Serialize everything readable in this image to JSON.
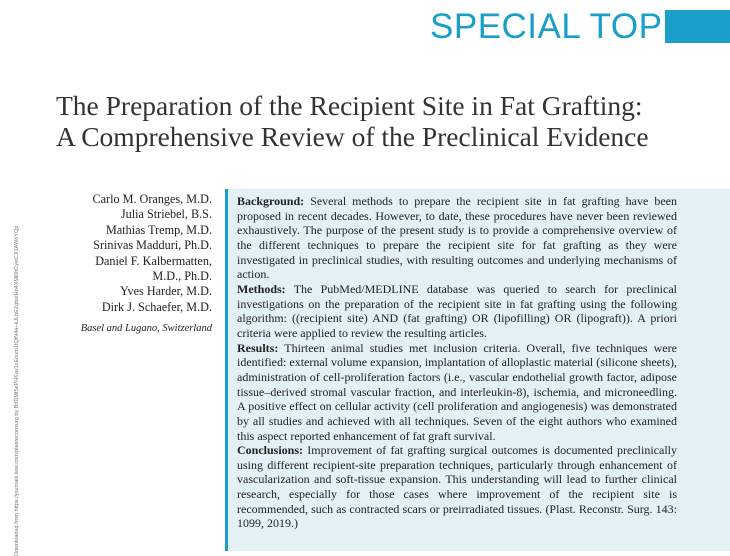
{
  "banner": {
    "label": "SPECIAL TOPIC",
    "color": "#1aa0c8"
  },
  "title": "The Preparation of the Recipient Site in Fat Grafting: A Comprehensive Review of the Preclinical Evidence",
  "authors": [
    "Carlo M. Oranges, M.D.",
    "Julia Striebel, B.S.",
    "Mathias Tremp, M.D.",
    "Srinivas Madduri, Ph.D.",
    "Daniel F. Kalbermatten,",
    "M.D., Ph.D.",
    "Yves Harder, M.D.",
    "Dirk J. Schaefer, M.D."
  ],
  "affiliation": "Basel and Lugano, Switzerland",
  "abstract": {
    "background_label": "Background:",
    "background": "Several methods to prepare the recipient site in fat grafting have been proposed in recent decades. However, to date, these procedures have never been reviewed exhaustively. The purpose of the present study is to provide a comprehensive overview of the different techniques to prepare the recipient site for fat grafting as they were investigated in preclinical studies, with resulting outcomes and underlying mechanisms of action.",
    "methods_label": "Methods:",
    "methods": "The PubMed/MEDLINE database was queried to search for preclinical investigations on the preparation of the recipient site in fat grafting using the following algorithm: ((recipient site) AND (fat grafting) OR (lipofilling) OR (lipograft)). A priori criteria were applied to review the resulting articles.",
    "results_label": "Results:",
    "results": "Thirteen animal studies met inclusion criteria. Overall, five techniques were identified: external volume expansion, implantation of alloplastic material (silicone sheets), administration of cell-proliferation factors (i.e., vascular endothelial growth factor, adipose tissue–derived stromal vascular fraction, and interleukin-8), ischemia, and microneedling. A positive effect on cellular activity (cell proliferation and angiogenesis) was demonstrated by all studies and achieved with all techniques. Seven of the eight authors who examined this aspect reported enhancement of fat graft survival.",
    "conclusions_label": "Conclusions:",
    "conclusions": "Improvement of fat grafting surgical outcomes is documented preclinically using different recipient-site preparation techniques, particularly through enhancement of vascularization and soft-tissue expansion. This understanding will lead to further clinical research, especially for those cases where improvement of the recipient site is recommended, such as contracted scars or preirradiated tissues.",
    "citation": "(Plast. Reconstr. Surg. 143: 1099, 2019.)"
  },
  "sidebar": "Downloaded from https://journals.lww.com/plasreconsurg by BhDMf5ePHKav1zEoum1tQfN4a+kJLhEZgbsIHo4XMi0hCywCX1AWnYQp/IlQrHD3"
}
